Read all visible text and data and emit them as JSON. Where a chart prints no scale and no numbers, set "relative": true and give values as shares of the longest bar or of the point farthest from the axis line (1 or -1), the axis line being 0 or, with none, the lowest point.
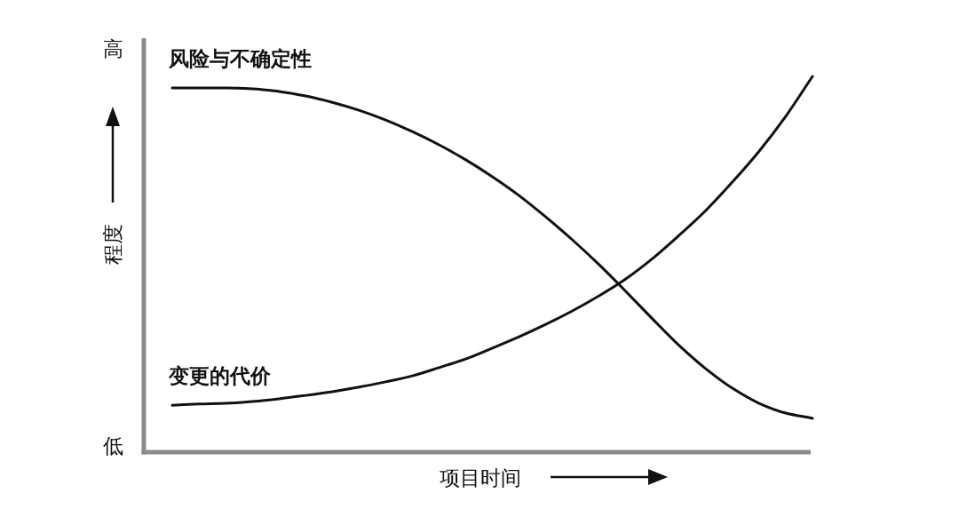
{
  "chart_data": {
    "type": "line",
    "relative": true,
    "xlabel": "项目时间",
    "ylabel": "程度",
    "annotations": [
      "高",
      "低"
    ],
    "categories": [
      null,
      null,
      null,
      null,
      null,
      null,
      null,
      null,
      null,
      null,
      null,
      null,
      null,
      null,
      null,
      null,
      null,
      null,
      null,
      null,
      null,
      null,
      null,
      null,
      null
    ],
    "series": [
      {
        "name": "风险与不确定性",
        "color": "#111111",
        "values": [
          0.969,
          0.969,
          0.969,
          0.967,
          0.96,
          0.948,
          0.931,
          0.91,
          0.884,
          0.853,
          0.818,
          0.778,
          0.733,
          0.683,
          0.626,
          0.565,
          0.499,
          0.428,
          0.355,
          0.284,
          0.222,
          0.17,
          0.13,
          0.104,
          0.09
        ]
      },
      {
        "name": "变更的代价",
        "color": "#111111",
        "values": [
          0.125,
          0.128,
          0.13,
          0.135,
          0.142,
          0.151,
          0.161,
          0.173,
          0.187,
          0.203,
          0.225,
          0.248,
          0.277,
          0.307,
          0.34,
          0.376,
          0.416,
          0.461,
          0.515,
          0.577,
          0.643,
          0.719,
          0.801,
          0.894,
          1
        ]
      }
    ]
  }
}
